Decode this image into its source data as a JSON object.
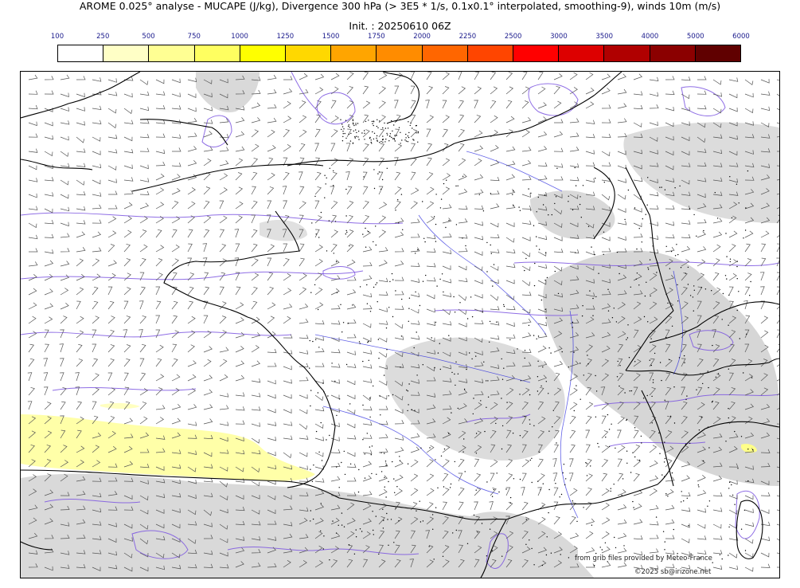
{
  "header": {
    "title": "AROME 0.025° analyse - MUCAPE (J/kg), Divergence 300 hPa (> 3E5 * 1/s, 0.1x0.1° interpolated, smoothing-9), winds 10m (m/s)",
    "init": "Init. : 20250610 06Z"
  },
  "colorbar": {
    "ticks": [
      "100",
      "250",
      "500",
      "750",
      "1000",
      "1250",
      "1500",
      "1750",
      "2000",
      "2250",
      "2500",
      "3000",
      "3500",
      "4000",
      "5000",
      "6000"
    ],
    "colors": [
      "#ffffff",
      "#ffffc6",
      "#ffff93",
      "#ffff60",
      "#ffff00",
      "#ffd800",
      "#ffa500",
      "#ff8c00",
      "#ff6600",
      "#ff4500",
      "#ff0000",
      "#dd0000",
      "#b00000",
      "#8b0000",
      "#600000"
    ]
  },
  "map": {
    "background_color": "#ffffff",
    "cloud_color": "#d9d9d9",
    "mucape_color": "#ffffa8",
    "coast_color": "#000000",
    "river_color": "#1f1fdd",
    "divergence_color": "#7b55e0",
    "barb_color": "#555555"
  },
  "credits": {
    "source": "from grib files provided by Meteo-France",
    "copyright": "©2025 sb@irizone.net"
  }
}
